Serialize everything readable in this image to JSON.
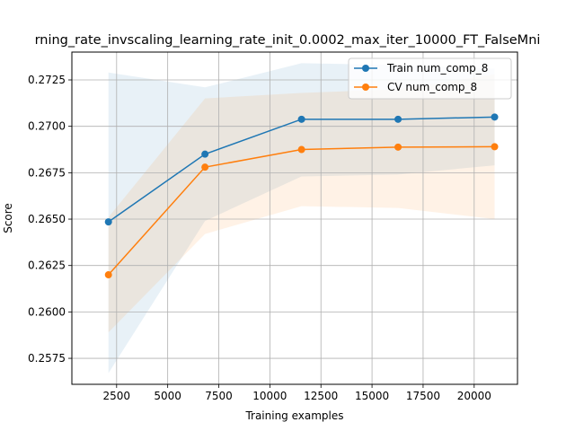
{
  "chart_data": {
    "type": "line",
    "title": "rning_rate_invscaling_learning_rate_init_0.0002_max_iter_10000_FT_FalseMni",
    "xlabel": "Training examples",
    "ylabel": "Score",
    "xlim": [
      310,
      22120
    ],
    "ylim": [
      0.2561,
      0.274
    ],
    "xticks": [
      2500,
      5000,
      7500,
      10000,
      12500,
      15000,
      17500,
      20000
    ],
    "xtick_labels": [
      "2500",
      "5000",
      "7500",
      "10000",
      "12500",
      "15000",
      "17500",
      "20000"
    ],
    "yticks": [
      0.2575,
      0.26,
      0.2625,
      0.265,
      0.2675,
      0.27,
      0.2725
    ],
    "ytick_labels": [
      "0.2575",
      "0.2600",
      "0.2625",
      "0.2650",
      "0.2675",
      "0.2700",
      "0.2725"
    ],
    "grid": true,
    "legend_position": "top-right",
    "x": [
      2100,
      6825,
      11550,
      16275,
      21000
    ],
    "series": [
      {
        "name": "Train num_comp_8",
        "color": "#1f77b4",
        "values": [
          0.26485,
          0.2685,
          0.27038,
          0.27038,
          0.2705
        ],
        "band_upper": [
          0.2729,
          0.2721,
          0.2734,
          0.2733,
          0.2731
        ],
        "band_lower": [
          0.2567,
          0.2649,
          0.2673,
          0.2674,
          0.2679
        ]
      },
      {
        "name": "CV num_comp_8",
        "color": "#ff7f0e",
        "values": [
          0.262,
          0.2678,
          0.26875,
          0.26888,
          0.2689
        ],
        "band_upper": [
          0.2651,
          0.2715,
          0.2718,
          0.272,
          0.2728
        ],
        "band_lower": [
          0.2589,
          0.2642,
          0.2657,
          0.2656,
          0.265
        ]
      }
    ]
  }
}
